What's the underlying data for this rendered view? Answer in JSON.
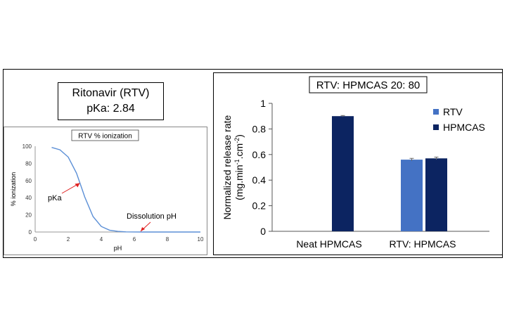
{
  "compound": {
    "name": "Ritonavir (RTV)",
    "pka": "pKa: 2.84"
  },
  "chart_data": [
    {
      "type": "line",
      "title": "RTV % ionization",
      "xlabel": "pH",
      "ylabel": "% ionization",
      "xlim": [
        0,
        10
      ],
      "ylim": [
        0,
        100
      ],
      "x_ticks": [
        0,
        2,
        4,
        6,
        8,
        10
      ],
      "y_ticks": [
        0,
        20,
        40,
        60,
        80,
        100
      ],
      "pka_value": 2.84,
      "series": [
        {
          "color": "#5b8fd6",
          "x": [
            1.0,
            1.5,
            2.0,
            2.5,
            2.84,
            3.0,
            3.5,
            4.0,
            4.5,
            5.0,
            5.5,
            6.0,
            6.5,
            7.0,
            8.0,
            9.0,
            10.0
          ],
          "y": [
            98.6,
            95.8,
            87.4,
            68.6,
            50.0,
            40.9,
            18.0,
            6.5,
            2.1,
            0.7,
            0.2,
            0.07,
            0.02,
            0.0,
            0.0,
            0.0,
            0.0
          ]
        }
      ],
      "annotations": [
        {
          "text": "pKa",
          "arrow_to": [
            2.7,
            57
          ]
        },
        {
          "text": "Dissolution pH",
          "arrow_to": [
            6.3,
            0
          ]
        }
      ],
      "annotation_color": "#e02020",
      "grid": false
    },
    {
      "type": "bar",
      "title": "RTV: HPMCAS 20: 80",
      "ylabel_line1": "Normalized release rate",
      "ylabel_line2_pre": "(mg.min",
      "ylabel_sup1": "-1",
      "ylabel_line2_mid": ".cm",
      "ylabel_sup2": "-2",
      "ylabel_line2_post": ")",
      "ylim": [
        0,
        1
      ],
      "y_ticks": [
        "0",
        "0.2",
        "0.4",
        "0.6",
        "0.8",
        "1"
      ],
      "categories": [
        "Neat HPMCAS",
        "RTV: HPMCAS"
      ],
      "series": [
        {
          "name": "RTV",
          "color": "#4472c4",
          "values": [
            null,
            0.56
          ]
        },
        {
          "name": "HPMCAS",
          "color": "#0c2461",
          "values": [
            0.9,
            0.57
          ]
        }
      ],
      "errors": [
        [
          null,
          0.01
        ],
        [
          0.005,
          0.01
        ]
      ],
      "legend_position": "top-right",
      "grid": false
    }
  ]
}
